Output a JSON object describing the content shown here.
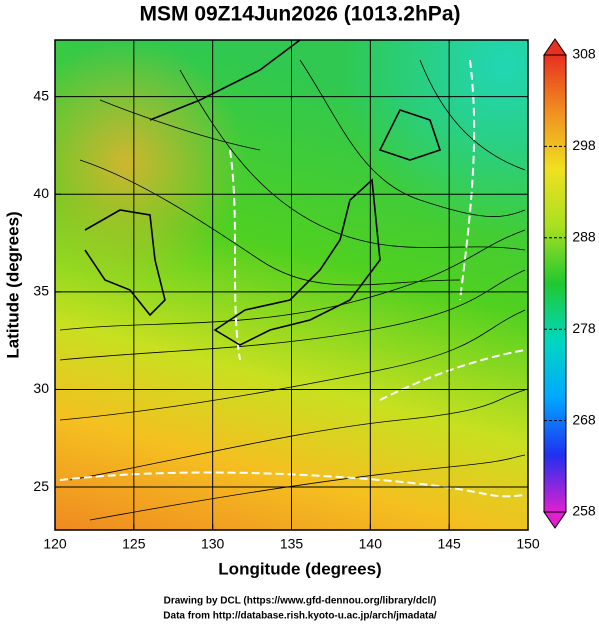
{
  "map": {
    "title": "MSM 09Z14Jun2026 (1013.2hPa)",
    "x_label": "Longitude (degrees)",
    "y_label": "Latitude  (degrees)",
    "xlim": [
      120,
      150
    ],
    "ylim": [
      22.8,
      47.9
    ],
    "xticks": [
      120,
      125,
      130,
      135,
      140,
      145,
      150
    ],
    "yticks": [
      25,
      30,
      35,
      40,
      45
    ],
    "grid": true,
    "colorbar": {
      "lim": [
        258,
        308
      ],
      "ticks": [
        258,
        268,
        278,
        288,
        298,
        308
      ],
      "colors": [
        "#e020d0",
        "#2030f0",
        "#00a8ff",
        "#00d8c0",
        "#20c830",
        "#a8e020",
        "#f0e020",
        "#f09020",
        "#e83020"
      ]
    },
    "credits": [
      "Drawing by DCL (https://www.gfd-dennou.org/library/dcl/)",
      "Data from http://database.rish.kyoto-u.ac.jp/arch/jmadata/"
    ]
  }
}
